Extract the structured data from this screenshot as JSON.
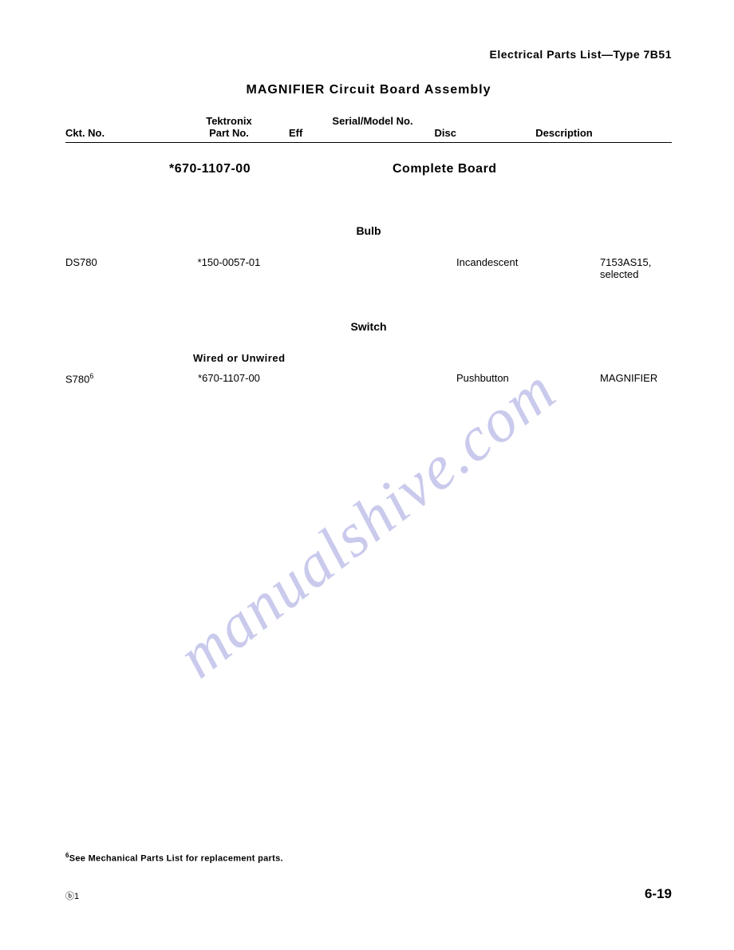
{
  "header": {
    "right": "Electrical Parts List—Type 7B51"
  },
  "title": "MAGNIFIER Circuit Board Assembly",
  "columns": {
    "ckt": "Ckt. No.",
    "part_line1": "Tektronix",
    "part_line2": "Part No.",
    "serial_top": "Serial/Model No.",
    "eff": "Eff",
    "disc": "Disc",
    "desc": "Description"
  },
  "board": {
    "part_no": "*670-1107-00",
    "desc": "Complete Board"
  },
  "sections": [
    {
      "heading": "Bulb",
      "subheading": "",
      "rows": [
        {
          "ckt": "DS780",
          "part": "*150-0057-01",
          "desc1": "Incandescent",
          "desc2": "7153AS15, selected"
        }
      ]
    },
    {
      "heading": "Switch",
      "subheading": "Wired or Unwired",
      "rows": [
        {
          "ckt": "S780",
          "ckt_sup": "6",
          "part": "*670-1107-00",
          "desc1": "Pushbutton",
          "desc2": "MAGNIFIER"
        }
      ]
    }
  ],
  "footnote": {
    "sup": "6",
    "text": "See Mechanical Parts List for replacement parts."
  },
  "page_marker": "ⓑ1",
  "page_number": "6-19",
  "watermark": "manualshive.com",
  "colors": {
    "text": "#000000",
    "background": "#ffffff",
    "watermark": "#b4b4e6"
  }
}
